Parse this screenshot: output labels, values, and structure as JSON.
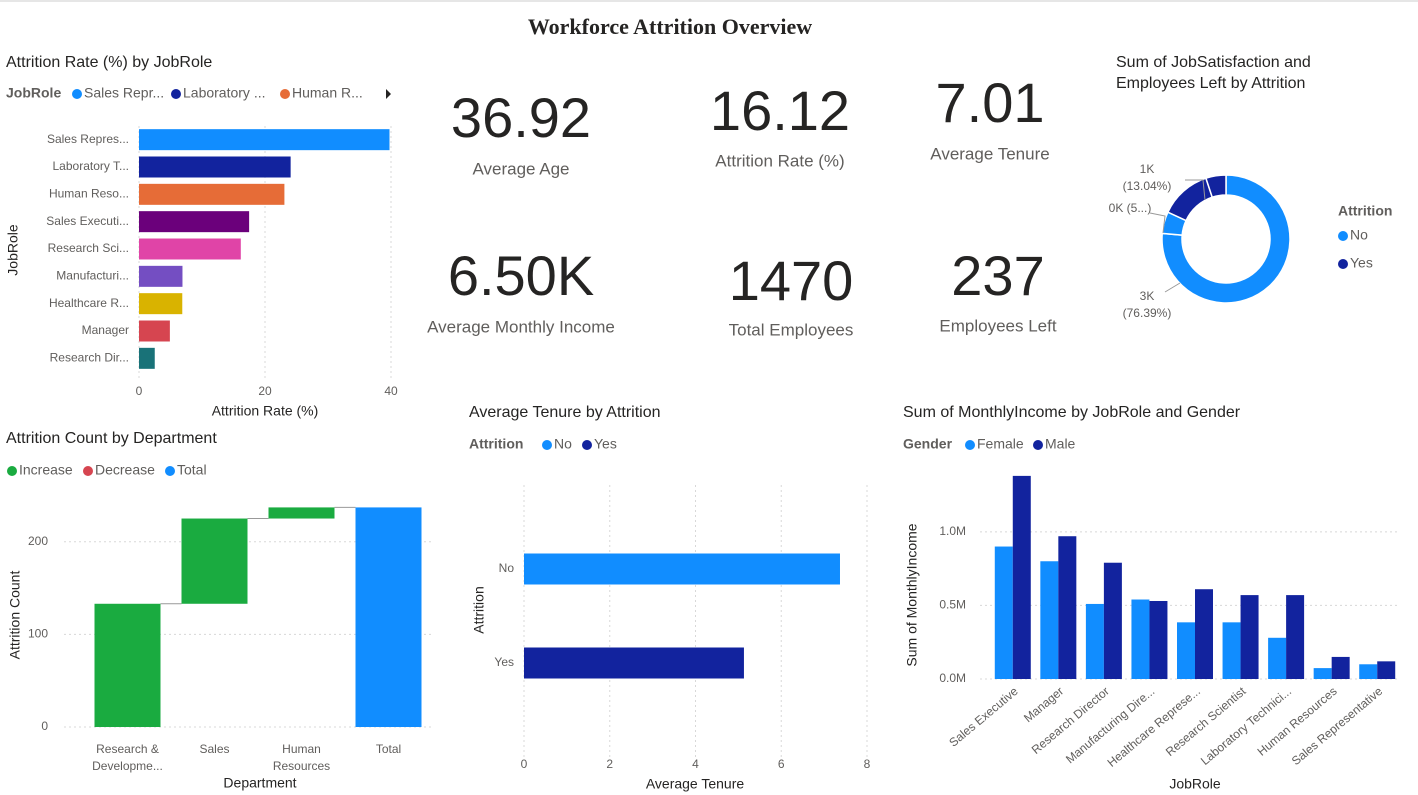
{
  "title": "Workforce Attrition Overview",
  "kpis": [
    {
      "value": 36.92,
      "label": "Average Age"
    },
    {
      "value": 16.12,
      "label": "Attrition Rate (%)"
    },
    {
      "value": 7.01,
      "label": "Average Tenure"
    },
    {
      "value": 6500,
      "value_label": "6.50K",
      "label": "Average Monthly Income"
    },
    {
      "value": 1470,
      "label": "Total Employees"
    },
    {
      "value": 237,
      "label": "Employees Left"
    }
  ],
  "chart_data": [
    {
      "type": "hbar",
      "title": "Attrition Rate (%) by JobRole",
      "legend_title": "JobRole",
      "legend": [
        "Sales Repr...",
        "Laboratory ...",
        "Human R..."
      ],
      "categories": [
        "Sales Repres...",
        "Laboratory T...",
        "Human Reso...",
        "Sales Executi...",
        "Research Sci...",
        "Manufacturi...",
        "Healthcare R...",
        "Manager",
        "Research Dir..."
      ],
      "values": [
        39.76,
        24.07,
        23.08,
        17.48,
        16.16,
        6.9,
        6.87,
        4.9,
        2.5
      ],
      "colors": [
        "#118dff",
        "#12239e",
        "#e66c37",
        "#6b007b",
        "#e044a7",
        "#744ec2",
        "#d9b300",
        "#d64550",
        "#197278"
      ],
      "xlim": [
        0,
        40
      ],
      "xticks": [
        0,
        20,
        40
      ],
      "xlabel": "Attrition Rate (%)",
      "ylabel": "JobRole",
      "grid": true
    },
    {
      "type": "waterfall",
      "title": "Attrition Count by Department",
      "series": [
        {
          "name": "Increase",
          "color": "#1aab40"
        },
        {
          "name": "Decrease",
          "color": "#d64550"
        },
        {
          "name": "Total",
          "color": "#118dff"
        }
      ],
      "categories": [
        "Research & Developme...",
        "Sales",
        "Human Resources",
        "Total"
      ],
      "values": [
        133,
        92,
        12,
        237
      ],
      "is_total": [
        false,
        false,
        false,
        true
      ],
      "ylim": [
        0,
        245
      ],
      "yticks": [
        0,
        100,
        200
      ],
      "xlabel": "Department",
      "ylabel": "Attrition Count",
      "grid": true
    },
    {
      "type": "hbar",
      "title": "Average Tenure by Attrition",
      "legend_title": "Attrition",
      "legend": [
        "No",
        "Yes"
      ],
      "categories": [
        "No",
        "Yes"
      ],
      "values": [
        7.37,
        5.13
      ],
      "colors": [
        "#118dff",
        "#12239e"
      ],
      "xlim": [
        0,
        8
      ],
      "xticks": [
        0,
        2,
        4,
        6,
        8
      ],
      "xlabel": "Average Tenure",
      "ylabel": "Attrition",
      "grid": true
    },
    {
      "type": "grouped_bar",
      "title": "Sum of MonthlyIncome by JobRole and Gender",
      "legend_title": "Gender",
      "categories": [
        "Sales Executive",
        "Manager",
        "Research Director",
        "Manufacturing Dire...",
        "Healthcare Represe...",
        "Research Scientist",
        "Laboratory Technici...",
        "Human Resources",
        "Sales Representative"
      ],
      "series": [
        {
          "name": "Female",
          "color": "#118dff",
          "values": [
            900000,
            800000,
            510000,
            540000,
            385000,
            385000,
            280000,
            74000,
            100000
          ]
        },
        {
          "name": "Male",
          "color": "#12239e",
          "values": [
            1380000,
            970000,
            790000,
            530000,
            610000,
            570000,
            570000,
            150000,
            120000
          ]
        }
      ],
      "ylim": [
        0,
        1420000
      ],
      "yticks": [
        {
          "value": 0,
          "label": "0.0M"
        },
        {
          "value": 500000,
          "label": "0.5M"
        },
        {
          "value": 1000000,
          "label": "1.0M"
        }
      ],
      "xlabel": "JobRole",
      "ylabel": "Sum of MonthlyIncome",
      "grid": true
    },
    {
      "type": "donut",
      "title": "Sum of JobSatisfaction and Employees Left by Attrition",
      "legend_title": "Attrition",
      "legend": [
        {
          "name": "No",
          "color": "#118dff"
        },
        {
          "name": "Yes",
          "color": "#12239e"
        }
      ],
      "values": [
        76.39,
        5.5,
        13.04,
        5.07
      ],
      "value_labels": [
        "3K (76.39%)",
        "0K (5...)",
        "1K (13.04%)",
        null
      ],
      "colors": [
        "#118dff",
        "#118dff",
        "#12239e",
        "#12239e"
      ]
    }
  ]
}
